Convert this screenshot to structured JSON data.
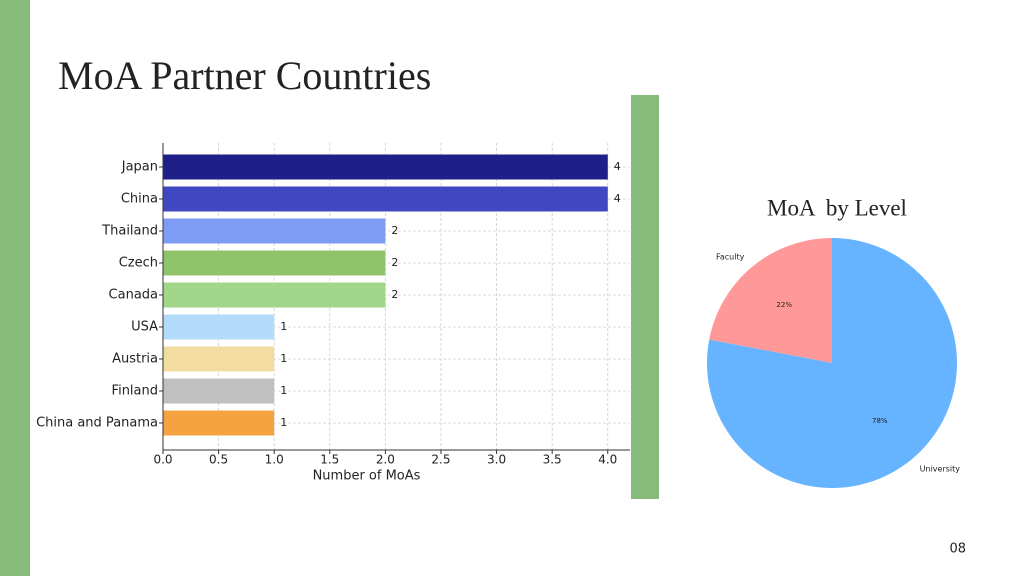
{
  "slide": {
    "title": "MoA Partner Countries",
    "page_number": "08"
  },
  "chart_data": [
    {
      "type": "hbar",
      "xlabel": "Number of MoAs",
      "categories": [
        "Japan",
        "China",
        "Thailand",
        "Czech",
        "Canada",
        "USA",
        "Austria",
        "Finland",
        "China and Panama"
      ],
      "values": [
        4,
        4,
        2,
        2,
        2,
        1,
        1,
        1,
        1
      ],
      "colors": [
        "#1f1f8a",
        "#3f48c0",
        "#7f9cf5",
        "#8fc46a",
        "#a1d68b",
        "#b3dcfa",
        "#f2dca0",
        "#c0c0c0",
        "#f4a340"
      ],
      "xlim": [
        0,
        4.2
      ],
      "xticks": [
        {
          "value": 0,
          "label": "0.0"
        },
        {
          "value": 0.5,
          "label": "0.5"
        },
        {
          "value": 1,
          "label": "1.0"
        },
        {
          "value": 1.5,
          "label": "1.5"
        },
        {
          "value": 2,
          "label": "2.0"
        },
        {
          "value": 2.5,
          "label": "2.5"
        },
        {
          "value": 3,
          "label": "3.0"
        },
        {
          "value": 3.5,
          "label": "3.5"
        },
        {
          "value": 4,
          "label": "4.0"
        }
      ],
      "grid": true
    },
    {
      "type": "pie",
      "title": "MoA  by Level",
      "categories": [
        "Faculty",
        "University"
      ],
      "values": [
        22,
        78
      ],
      "value_labels": [
        "22%",
        "78%"
      ],
      "colors": [
        "#ff9999",
        "#66b3ff"
      ]
    }
  ]
}
